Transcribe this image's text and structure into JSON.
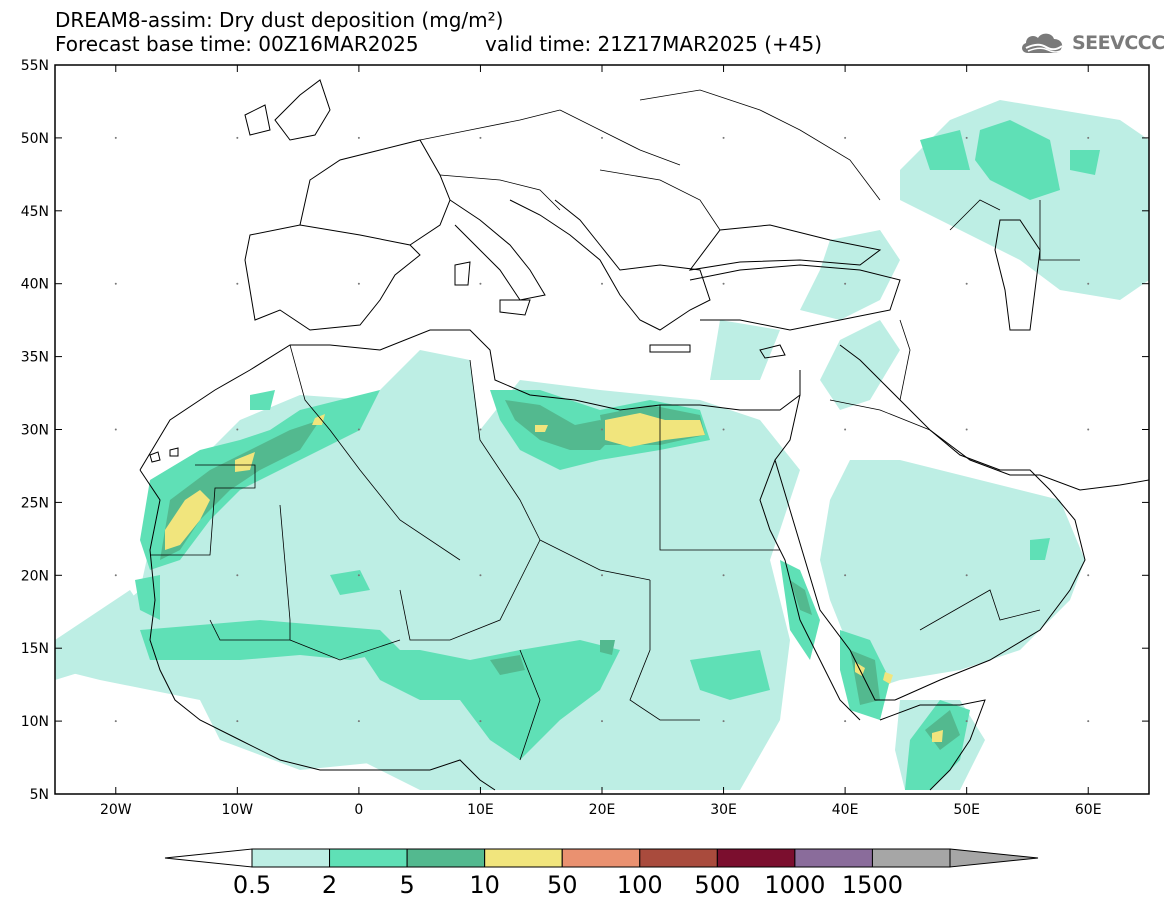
{
  "title": {
    "line1": "DREAM8-assim: Dry dust deposition (mg/m²)",
    "line2": "Forecast base time: 00Z16MAR2025",
    "valid": "valid time: 21Z17MAR2025 (+45)"
  },
  "logo": {
    "text": "SEEVCCC",
    "icon": "cloud-icon"
  },
  "map": {
    "lat_range": [
      5,
      55
    ],
    "lon_range": [
      -25,
      65
    ],
    "lat_labels": [
      "55N",
      "50N",
      "45N",
      "40N",
      "35N",
      "30N",
      "25N",
      "20N",
      "15N",
      "10N",
      "5N"
    ],
    "lon_labels": [
      "20W",
      "10W",
      "0",
      "10E",
      "20E",
      "30E",
      "40E",
      "50E",
      "60E"
    ]
  },
  "legend": {
    "thresholds": [
      "0.5",
      "2",
      "5",
      "10",
      "50",
      "100",
      "500",
      "1000",
      "1500"
    ],
    "colors": [
      "#bdeee4",
      "#5fe0b6",
      "#53b98f",
      "#f1e57d",
      "#ea9170",
      "#a94b3d",
      "#7b0e2e",
      "#8a6c9b",
      "#a6a6a6"
    ]
  }
}
